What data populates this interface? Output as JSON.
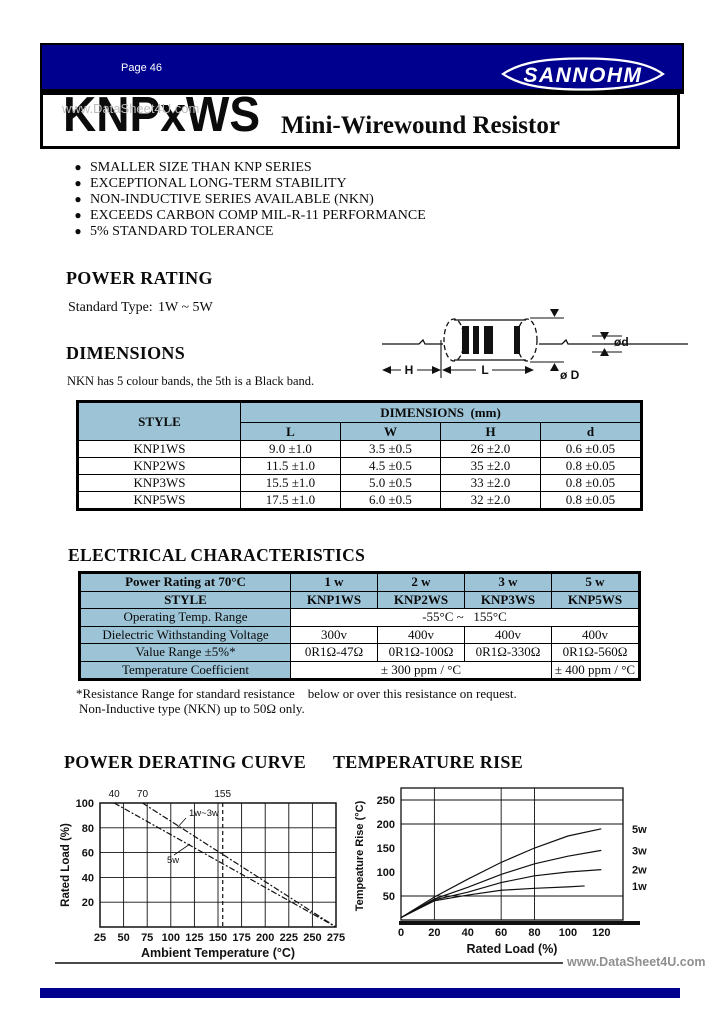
{
  "colors": {
    "navy": "#00008e",
    "table_header_blue": "#9cc3d6",
    "watermark_gray": "#8f8f8f"
  },
  "page": {
    "label": "Page 46",
    "brand": "SANNOHM",
    "watermark_top": "www.DataSheet4U.com",
    "watermark_bottom": "www.DataSheet4U.com"
  },
  "title": {
    "model": "KNPxWS",
    "product": "Mini-Wirewound Resistor"
  },
  "features": [
    "SMALLER SIZE THAN KNP SERIES",
    "EXCEPTIONAL LONG-TERM STABILITY",
    "NON-INDUCTIVE SERIES AVAILABLE (NKN)",
    "EXCEEDS CARBON COMP MIL-R-11 PERFORMANCE",
    "5% STANDARD TOLERANCE"
  ],
  "power_rating": {
    "heading": "POWER RATING",
    "label": "Standard Type:",
    "value": "1W ~ 5W"
  },
  "dimensions": {
    "heading": "DIMENSIONS",
    "note": "NKN has 5 colour bands, the 5th is a Black band.",
    "diagram": {
      "h": "H",
      "l": "L",
      "d_small": "ød",
      "d_big": "ø D"
    },
    "table": {
      "col_style": "STYLE",
      "col_group": "DIMENSIONS  (mm)",
      "cols": [
        "L",
        "W",
        "H",
        "d"
      ],
      "rows": [
        {
          "style": "KNP1WS",
          "l": "9.0 ±1.0",
          "w": "3.5 ±0.5",
          "h": "26 ±2.0",
          "d": "0.6 ±0.05"
        },
        {
          "style": "KNP2WS",
          "l": "11.5 ±1.0",
          "w": "4.5 ±0.5",
          "h": "35 ±2.0",
          "d": "0.8 ±0.05"
        },
        {
          "style": "KNP3WS",
          "l": "15.5 ±1.0",
          "w": "5.0 ±0.5",
          "h": "33 ±2.0",
          "d": "0.8 ±0.05"
        },
        {
          "style": "KNP5WS",
          "l": "17.5 ±1.0",
          "w": "6.0 ±0.5",
          "h": "32 ±2.0",
          "d": "0.8 ±0.05"
        }
      ]
    }
  },
  "electrical": {
    "heading": "ELECTRICAL CHARACTERISTICS",
    "table": {
      "row_power": {
        "label": "Power Rating at 70°C",
        "values": [
          "1 w",
          "2 w",
          "3 w",
          "5 w"
        ]
      },
      "row_style": {
        "label": "STYLE",
        "values": [
          "KNP1WS",
          "KNP2WS",
          "KNP3WS",
          "KNP5WS"
        ]
      },
      "row_temp": {
        "label": "Operating Temp. Range",
        "value": "-55°C ~   155°C"
      },
      "row_voltage": {
        "label": "Dielectric Withstanding Voltage",
        "values": [
          "300v",
          "400v",
          "400v",
          "400v"
        ]
      },
      "row_range": {
        "label": "Value Range ±5%*",
        "values": [
          "0R1Ω-47Ω",
          "0R1Ω-100Ω",
          "0R1Ω-330Ω",
          "0R1Ω-560Ω"
        ]
      },
      "row_tc": {
        "label": "Temperature Coefficient",
        "value_a": "± 300 ppm / °C",
        "value_b": "± 400 ppm / °C"
      }
    },
    "footnote1": "*Resistance Range for standard resistance    below or over this resistance on request.",
    "footnote2": "Non-Inductive type (NKN) up to 50Ω only."
  },
  "chart_data": [
    {
      "type": "line",
      "title": "POWER DERATING CURVE",
      "xlabel": "Ambient Temperature (°C)",
      "ylabel": "Rated Load (%)",
      "xlim": [
        25,
        275
      ],
      "ylim": [
        0,
        100
      ],
      "xticks": [
        25,
        50,
        75,
        100,
        125,
        150,
        175,
        200,
        225,
        250,
        275
      ],
      "yticks": [
        20,
        40,
        60,
        80,
        100
      ],
      "grid": "full",
      "line_style": "dash-dot",
      "series": [
        {
          "name": "5w",
          "points": [
            [
              40,
              100
            ],
            [
              275,
              0
            ]
          ]
        },
        {
          "name": "1w~3w",
          "points": [
            [
              70,
              100
            ],
            [
              275,
              0
            ]
          ]
        }
      ],
      "annotations": {
        "top_labels": [
          {
            "x": 40,
            "text": "40"
          },
          {
            "x": 70,
            "text": "70"
          },
          {
            "x": 155,
            "text": "155"
          }
        ],
        "vline_x": 155
      }
    },
    {
      "type": "line",
      "title": "TEMPERATURE RISE",
      "xlabel": "Rated  Load  (%)",
      "ylabel": "Tempeature Rise (°C)",
      "xlim": [
        0,
        133
      ],
      "ylim": [
        0,
        275
      ],
      "xticks": [
        0,
        20,
        40,
        60,
        80,
        100,
        120
      ],
      "yticks": [
        50,
        100,
        150,
        200,
        250
      ],
      "grid_x": [
        20,
        60,
        80
      ],
      "grid_y": [
        50,
        200,
        250
      ],
      "legend_position": "right",
      "series": [
        {
          "name": "5w",
          "points": [
            [
              0,
              5
            ],
            [
              20,
              48
            ],
            [
              40,
              85
            ],
            [
              60,
              120
            ],
            [
              80,
              150
            ],
            [
              100,
              175
            ],
            [
              120,
              190
            ]
          ]
        },
        {
          "name": "3w",
          "points": [
            [
              0,
              5
            ],
            [
              20,
              44
            ],
            [
              40,
              68
            ],
            [
              60,
              95
            ],
            [
              80,
              117
            ],
            [
              100,
              133
            ],
            [
              120,
              145
            ]
          ]
        },
        {
          "name": "2w",
          "points": [
            [
              0,
              5
            ],
            [
              20,
              42
            ],
            [
              40,
              58
            ],
            [
              60,
              78
            ],
            [
              80,
              92
            ],
            [
              100,
              100
            ],
            [
              120,
              105
            ]
          ]
        },
        {
          "name": "1w",
          "points": [
            [
              0,
              5
            ],
            [
              20,
              40
            ],
            [
              40,
              52
            ],
            [
              60,
              62
            ],
            [
              80,
              66
            ],
            [
              100,
              69
            ],
            [
              110,
              71
            ]
          ]
        }
      ]
    }
  ]
}
